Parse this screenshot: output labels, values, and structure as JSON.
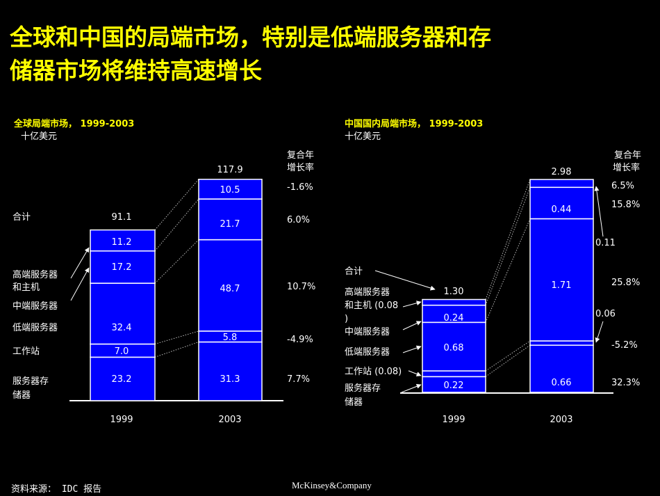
{
  "title_line1": "全球和中国的局端市场，特别是低端服务器和存",
  "title_line2": "储器市场将维持高速增长",
  "source": "资料来源： IDC 报告",
  "logo": "McKinsey&Company",
  "colors": {
    "bar": "#0000ff",
    "title": "#ffff00",
    "panel_title": "#ffff00",
    "text": "#ffffff",
    "background": "#000000"
  },
  "chart_data": [
    {
      "type": "bar",
      "stacked": true,
      "title": "全球局端市场， 1999-2003",
      "subtitle": "十亿美元",
      "cagr_header": [
        "复合年",
        "增长率"
      ],
      "categories": [
        "1999",
        "2003"
      ],
      "segments": [
        "服务器存储器",
        "工作站",
        "低端服务器",
        "中端服务器",
        "高端服务器和主机"
      ],
      "series": [
        {
          "name": "服务器存储器",
          "values": [
            23.2,
            31.3
          ],
          "labels": [
            "23.2",
            "31.3"
          ],
          "cagr": "7.7%"
        },
        {
          "name": "工作站",
          "values": [
            7.0,
            5.8
          ],
          "labels": [
            "7.0",
            "5.8"
          ],
          "cagr": "-4.9%"
        },
        {
          "name": "低端服务器",
          "values": [
            32.4,
            48.7
          ],
          "labels": [
            "32.4",
            "48.7"
          ],
          "cagr": "10.7%"
        },
        {
          "name": "中端服务器",
          "values": [
            17.2,
            21.7
          ],
          "labels": [
            "17.2",
            "21.7"
          ],
          "cagr": "6.0%"
        },
        {
          "name": "高端服务器和主机",
          "values": [
            11.2,
            10.5
          ],
          "labels": [
            "11.2",
            "10.5"
          ],
          "cagr": "-1.6%"
        }
      ],
      "totals": [
        "91.1",
        "117.9"
      ],
      "total_label": "合计"
    },
    {
      "type": "bar",
      "stacked": true,
      "title": "中国国内局端市场， 1999-2003",
      "subtitle": "十亿美元",
      "cagr_header": [
        "复合年",
        "增长率"
      ],
      "categories": [
        "1999",
        "2003"
      ],
      "segments": [
        "服务器存储器",
        "工作站",
        "低端服务器",
        "中端服务器",
        "高端服务器和主机"
      ],
      "series": [
        {
          "name": "服务器存储器",
          "values": [
            0.22,
            0.66
          ],
          "labels": [
            "0.22",
            "0.66"
          ],
          "cagr": "32.3%"
        },
        {
          "name": "工作站",
          "values": [
            0.08,
            0.06
          ],
          "labels": [
            "0.08",
            "0.06"
          ],
          "cagr": "-5.2%"
        },
        {
          "name": "低端服务器",
          "values": [
            0.68,
            1.71
          ],
          "labels": [
            "0.68",
            "1.71"
          ],
          "cagr": "25.8%"
        },
        {
          "name": "中端服务器",
          "values": [
            0.24,
            0.44
          ],
          "labels": [
            "0.24",
            "0.44"
          ],
          "cagr": "15.8%"
        },
        {
          "name": "高端服务器和主机",
          "values": [
            0.08,
            0.11
          ],
          "labels": [
            "0.08",
            "0.11"
          ],
          "cagr": "6.5%"
        }
      ],
      "totals": [
        "1.30",
        "2.98"
      ],
      "total_label": "合计"
    }
  ]
}
